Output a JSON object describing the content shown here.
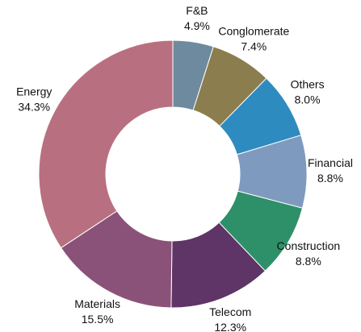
{
  "chart_data": {
    "type": "donut",
    "categories": [
      "F&B",
      "Conglomerate",
      "Others",
      "Financial",
      "Construction",
      "Telecom",
      "Materials",
      "Energy"
    ],
    "values": [
      4.9,
      7.4,
      8.0,
      8.8,
      8.8,
      12.3,
      15.5,
      34.3
    ],
    "value_labels": [
      "4.9%",
      "7.4%",
      "8.0%",
      "8.8%",
      "8.8%",
      "12.3%",
      "15.5%",
      "34.3%"
    ],
    "colors": [
      "#6e8a9e",
      "#8b7d4e",
      "#2e8bc0",
      "#7f9abf",
      "#2e9068",
      "#5e3566",
      "#8a5278",
      "#b87080"
    ]
  }
}
